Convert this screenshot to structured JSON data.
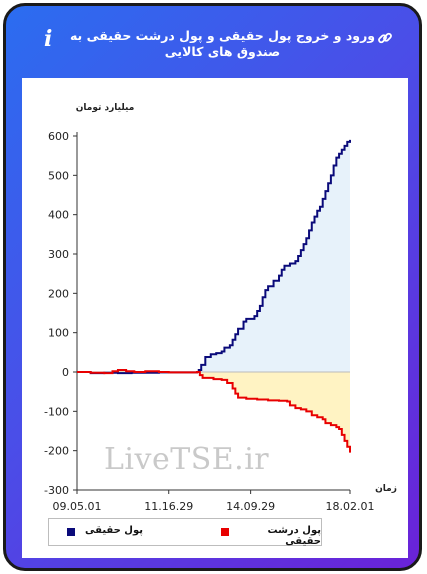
{
  "header": {
    "title": "ورود و خروج پول حقیقی و پول درشت حقیقی به صندوق های کالایی",
    "info_icon": "i"
  },
  "watermark": "LiveTSE.ir",
  "chart_data": {
    "type": "line",
    "title": "ورود و خروج پول حقیقی و پول درشت حقیقی به صندوق های کالایی",
    "ylabel": "میلیارد تومان",
    "xlabel": "زمان",
    "ylim": [
      -300,
      600
    ],
    "yticks": [
      600,
      500,
      400,
      300,
      200,
      100,
      0,
      -100,
      -200,
      -300
    ],
    "xticks": [
      "09.05.01",
      "11.16.29",
      "14.09.29",
      "18.02.01"
    ],
    "x_range": [
      0,
      100
    ],
    "xtick_positions": [
      0,
      33.6,
      63.6,
      100
    ],
    "grid": false,
    "legend_position": "bottom",
    "series": [
      {
        "name": "پول حقیقی",
        "color": "#0a0a7a",
        "fill": "#e7f2fa",
        "points": [
          [
            0,
            0
          ],
          [
            5,
            -3
          ],
          [
            10,
            -2
          ],
          [
            15,
            -3
          ],
          [
            20,
            -2
          ],
          [
            25,
            -2
          ],
          [
            30,
            -1
          ],
          [
            33.6,
            -1
          ],
          [
            44,
            0
          ],
          [
            44.6,
            5
          ],
          [
            45.5,
            18
          ],
          [
            47,
            38
          ],
          [
            49,
            45
          ],
          [
            51,
            48
          ],
          [
            53,
            52
          ],
          [
            54,
            62
          ],
          [
            56,
            68
          ],
          [
            57,
            82
          ],
          [
            58,
            96
          ],
          [
            59,
            110
          ],
          [
            60,
            110
          ],
          [
            61,
            128
          ],
          [
            62,
            135
          ],
          [
            64,
            135
          ],
          [
            65,
            142
          ],
          [
            66,
            155
          ],
          [
            67,
            168
          ],
          [
            68,
            190
          ],
          [
            69,
            208
          ],
          [
            70,
            218
          ],
          [
            72,
            232
          ],
          [
            74,
            245
          ],
          [
            75,
            260
          ],
          [
            76,
            270
          ],
          [
            78,
            276
          ],
          [
            80,
            282
          ],
          [
            81,
            295
          ],
          [
            82,
            310
          ],
          [
            83,
            325
          ],
          [
            84,
            340
          ],
          [
            85,
            360
          ],
          [
            86,
            380
          ],
          [
            87,
            395
          ],
          [
            88,
            410
          ],
          [
            89,
            420
          ],
          [
            90,
            440
          ],
          [
            91,
            460
          ],
          [
            92,
            480
          ],
          [
            93,
            500
          ],
          [
            94,
            525
          ],
          [
            95,
            545
          ],
          [
            96,
            555
          ],
          [
            97,
            565
          ],
          [
            98,
            575
          ],
          [
            99,
            585
          ],
          [
            100,
            590
          ]
        ]
      },
      {
        "name": "پول درشت حقیقی",
        "color": "#e80000",
        "fill": "#fff3c3",
        "points": [
          [
            0,
            0
          ],
          [
            5,
            -2
          ],
          [
            10,
            -3
          ],
          [
            13,
            2
          ],
          [
            15,
            5
          ],
          [
            18,
            2
          ],
          [
            21,
            0
          ],
          [
            25,
            2
          ],
          [
            30,
            0
          ],
          [
            33.6,
            -1
          ],
          [
            44,
            0
          ],
          [
            45,
            -8
          ],
          [
            46,
            -15
          ],
          [
            50,
            -18
          ],
          [
            53,
            -20
          ],
          [
            55,
            -28
          ],
          [
            57,
            -42
          ],
          [
            58,
            -55
          ],
          [
            59,
            -65
          ],
          [
            62,
            -68
          ],
          [
            66,
            -70
          ],
          [
            70,
            -72
          ],
          [
            74,
            -73
          ],
          [
            77,
            -75
          ],
          [
            78,
            -85
          ],
          [
            80,
            -92
          ],
          [
            82,
            -95
          ],
          [
            84,
            -100
          ],
          [
            86,
            -110
          ],
          [
            88,
            -115
          ],
          [
            90,
            -120
          ],
          [
            91,
            -130
          ],
          [
            93,
            -135
          ],
          [
            95,
            -140
          ],
          [
            96,
            -145
          ],
          [
            97,
            -160
          ],
          [
            98,
            -175
          ],
          [
            99,
            -190
          ],
          [
            100,
            -205
          ]
        ]
      }
    ]
  },
  "legend": [
    {
      "label": "پول حقیقی",
      "color": "#0a0a7a"
    },
    {
      "label": "پول درشت حقیقی",
      "color": "#e80000"
    }
  ]
}
